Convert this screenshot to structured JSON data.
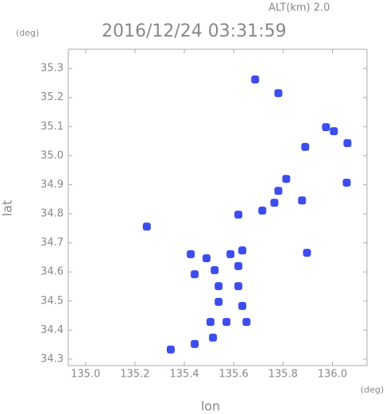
{
  "chart_data": {
    "type": "scatter",
    "altitude_label": "ALT(km) 2.0",
    "title": "2016/12/24 03:31:59",
    "x_unit": "(deg)",
    "y_unit": "(deg)",
    "xlabel": "lon",
    "ylabel": "lat",
    "xlim": [
      134.93,
      136.14
    ],
    "ylim": [
      34.278,
      35.366
    ],
    "xticks": [
      {
        "value": 135.0,
        "label": "135.0"
      },
      135.2,
      135.4,
      135.6,
      135.8,
      {
        "value": 136.0,
        "label": "136.0"
      }
    ],
    "yticks": [
      34.3,
      34.4,
      34.5,
      34.6,
      34.7,
      34.8,
      34.9,
      {
        "value": 35.0,
        "label": "35.0"
      },
      35.1,
      35.2,
      35.3
    ],
    "color": "#3c4df0",
    "x": [
      135.687,
      135.781,
      136.006,
      136.061,
      135.974,
      135.89,
      135.813,
      135.781,
      135.765,
      135.877,
      135.716,
      135.619,
      135.248,
      135.897,
      136.058,
      135.426,
      135.49,
      135.587,
      135.635,
      135.442,
      135.523,
      135.619,
      135.539,
      135.619,
      135.539,
      135.635,
      135.506,
      135.571,
      135.652,
      135.516,
      135.442,
      135.345
    ],
    "y": [
      35.262,
      35.215,
      35.084,
      35.043,
      35.098,
      35.03,
      34.92,
      34.879,
      34.838,
      34.846,
      34.811,
      34.797,
      34.756,
      34.666,
      34.907,
      34.661,
      34.647,
      34.661,
      34.674,
      34.592,
      34.606,
      34.62,
      34.551,
      34.551,
      34.497,
      34.483,
      34.428,
      34.428,
      34.428,
      34.374,
      34.352,
      34.333
    ]
  }
}
